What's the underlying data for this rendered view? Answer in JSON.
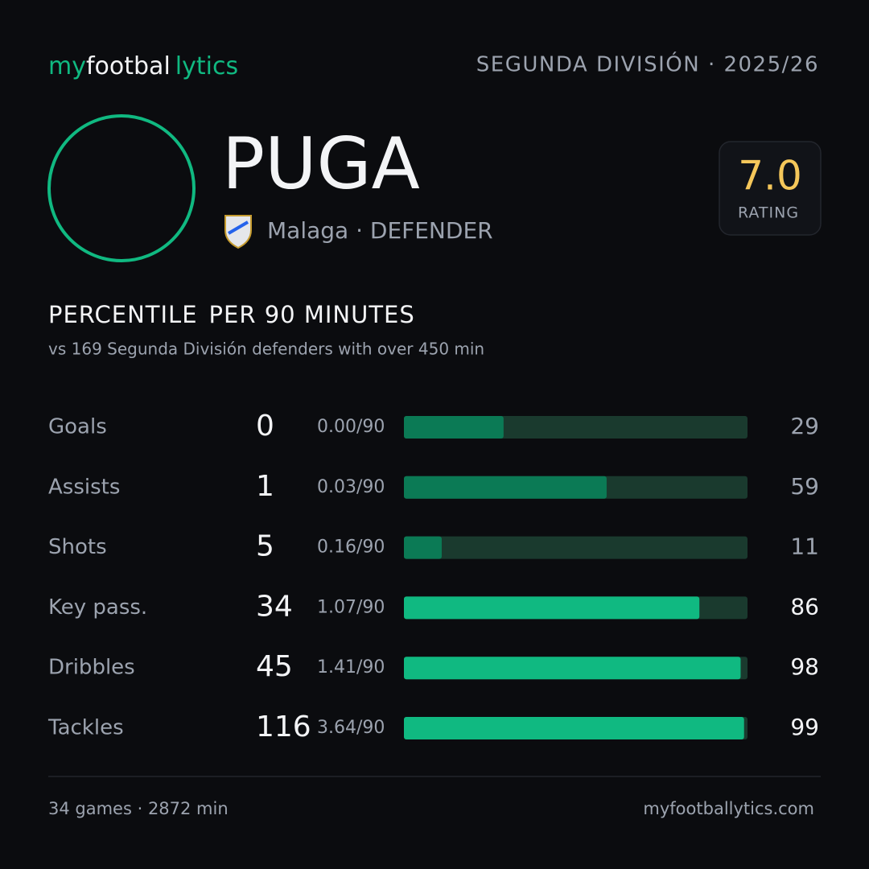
{
  "header": {
    "brand": [
      "my",
      "footbal",
      "lytics"
    ],
    "league": "SEGUNDA DIVISIÓN · 2025/26"
  },
  "player": {
    "name": "PUGA",
    "meta": "Malaga · DEFENDER",
    "rating": "7.0",
    "rating_label": "RATING"
  },
  "section": {
    "title": [
      "PERCENTILE",
      "PER 90 MINUTES"
    ],
    "subtitle": "vs 169 Segunda División defenders with over 450 min"
  },
  "stats": {
    "xlim": [
      0,
      100
    ],
    "track_color": "#1a3a2e",
    "rows": [
      {
        "label": "Goals",
        "total": 0,
        "per90": "0.00/90",
        "percentile": 29,
        "color": "#0b7a55"
      },
      {
        "label": "Assists",
        "total": 1,
        "per90": "0.03/90",
        "percentile": 59,
        "color": "#0b7a55"
      },
      {
        "label": "Shots",
        "total": 5,
        "per90": "0.16/90",
        "percentile": 11,
        "color": "#0b7a55"
      },
      {
        "label": "Key pass.",
        "total": 34,
        "per90": "1.07/90",
        "percentile": 86,
        "color": "#10b981"
      },
      {
        "label": "Dribbles",
        "total": 45,
        "per90": "1.41/90",
        "percentile": 98,
        "color": "#10b981"
      },
      {
        "label": "Tackles",
        "total": 116,
        "per90": "3.64/90",
        "percentile": 99,
        "color": "#10b981"
      }
    ]
  },
  "footer": {
    "left": "34 games · 2872 min",
    "right": "myfootballytics.com"
  }
}
